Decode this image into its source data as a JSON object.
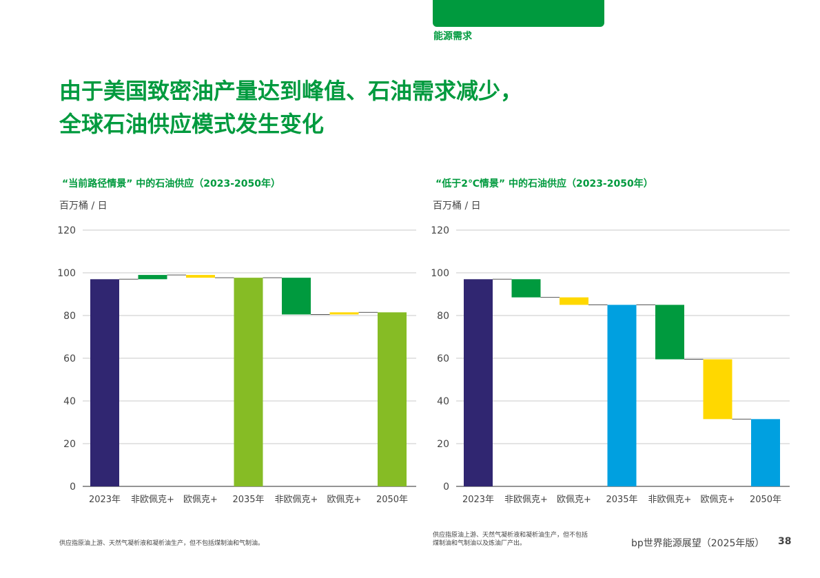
{
  "header": {
    "section_label": "能源需求",
    "title_line1": "由于美国致密油产量达到峰值、石油需求减少，",
    "title_line2": "全球石油供应模式发生变化"
  },
  "colors": {
    "brand_green": "#009A3E",
    "navy": "#302671",
    "lime": "#86BC25",
    "green": "#009A3E",
    "yellow": "#FFD800",
    "blue": "#00A0E0"
  },
  "chart_data": [
    {
      "type": "bar",
      "subtype": "waterfall",
      "title": "“当前路径情景” 中的石油供应（2023-2050年）",
      "ylabel": "百万桶 / 日",
      "ylim": [
        0,
        120
      ],
      "yticks": [
        0,
        20,
        40,
        60,
        80,
        100,
        120
      ],
      "grid": true,
      "categories": [
        "2023年",
        "非欧佩克+",
        "欧佩克+",
        "2035年",
        "非欧佩克+",
        "欧佩克+",
        "2050年"
      ],
      "bars": [
        {
          "kind": "total",
          "start": 0,
          "end": 97,
          "color": "#302671"
        },
        {
          "kind": "delta",
          "start": 97,
          "end": 99,
          "color": "#009A3E"
        },
        {
          "kind": "delta",
          "start": 99,
          "end": 97.7,
          "color": "#FFD800"
        },
        {
          "kind": "total",
          "start": 0,
          "end": 97.7,
          "color": "#86BC25"
        },
        {
          "kind": "delta",
          "start": 97.7,
          "end": 80.5,
          "color": "#009A3E"
        },
        {
          "kind": "delta",
          "start": 80.5,
          "end": 81.5,
          "color": "#FFD800"
        },
        {
          "kind": "total",
          "start": 0,
          "end": 81.5,
          "color": "#86BC25"
        }
      ],
      "footnote": "供应指原油上游、天然气凝析液和凝析油生产，但不包括煤制油和气制油。"
    },
    {
      "type": "bar",
      "subtype": "waterfall",
      "title": "“低于2℃情景” 中的石油供应（2023-2050年）",
      "ylabel": "百万桶 / 日",
      "ylim": [
        0,
        120
      ],
      "yticks": [
        0,
        20,
        40,
        60,
        80,
        100,
        120
      ],
      "grid": true,
      "categories": [
        "2023年",
        "非欧佩克+",
        "欧佩克+",
        "2035年",
        "非欧佩克+",
        "欧佩克+",
        "2050年"
      ],
      "bars": [
        {
          "kind": "total",
          "start": 0,
          "end": 97,
          "color": "#302671"
        },
        {
          "kind": "delta",
          "start": 97,
          "end": 88.5,
          "color": "#009A3E"
        },
        {
          "kind": "delta",
          "start": 88.5,
          "end": 85,
          "color": "#FFD800"
        },
        {
          "kind": "total",
          "start": 0,
          "end": 85,
          "color": "#00A0E0"
        },
        {
          "kind": "delta",
          "start": 85,
          "end": 59.5,
          "color": "#009A3E"
        },
        {
          "kind": "delta",
          "start": 59.5,
          "end": 31.5,
          "color": "#FFD800"
        },
        {
          "kind": "total",
          "start": 0,
          "end": 31.5,
          "color": "#00A0E0"
        }
      ],
      "footnote": "供应指原油上游、天然气凝析液和凝析油生产，但不包括煤制油和气制油以及炼油厂产出。"
    }
  ],
  "footer": {
    "publication": "bp世界能源展望（2025年版）",
    "page_number": "38"
  }
}
